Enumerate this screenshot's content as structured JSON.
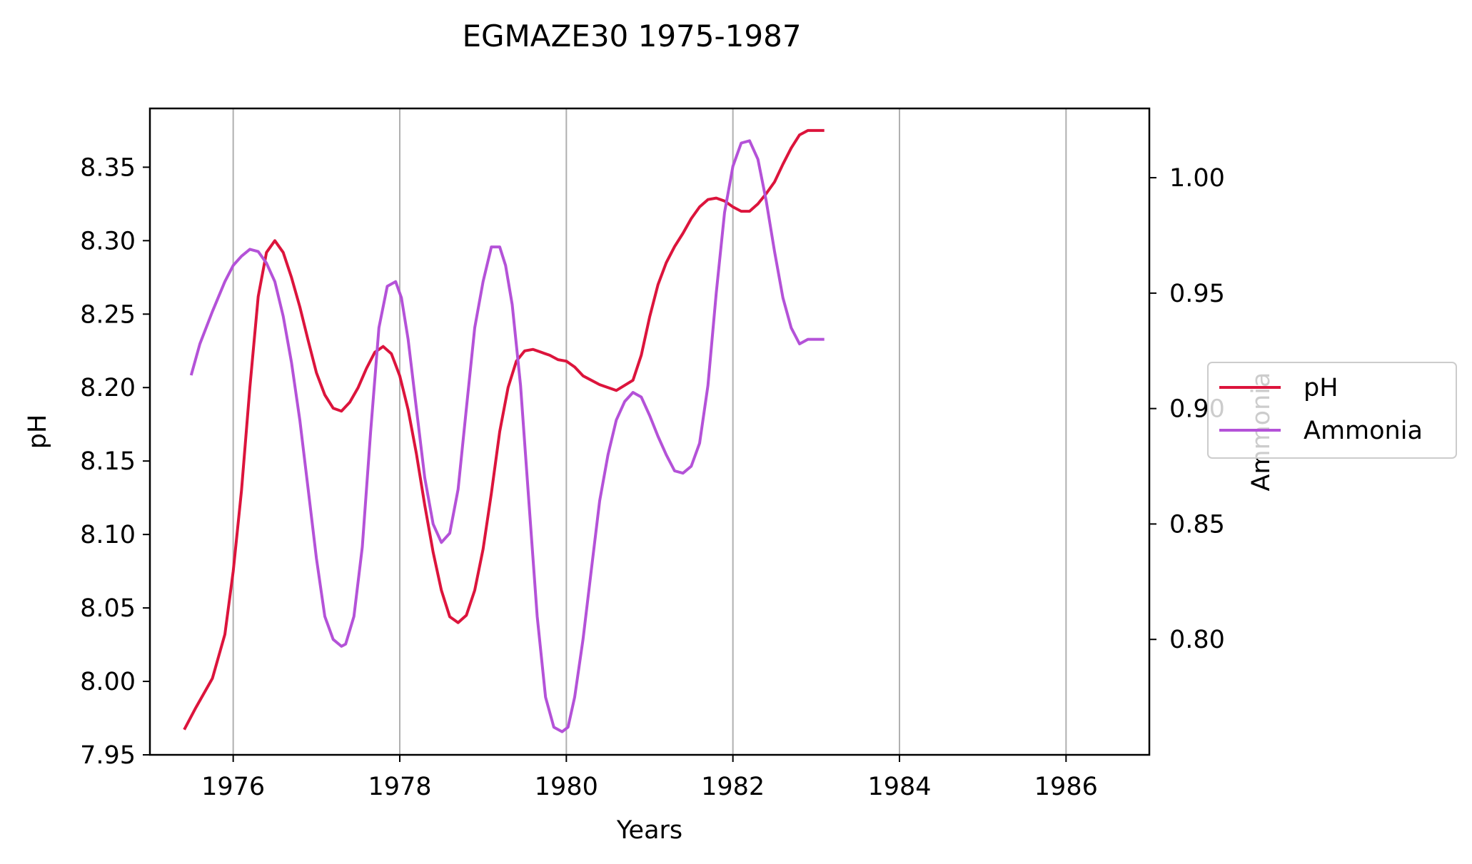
{
  "chart_data": {
    "type": "line",
    "title": "EGMAZE30 1975-1987",
    "xlabel": "Years",
    "ylabel": "pH",
    "y2label": "Ammonia",
    "xlim": [
      1975.0,
      1987.0
    ],
    "ylim": [
      7.95,
      8.39
    ],
    "y2lim": [
      0.75,
      1.03
    ],
    "x_ticks": [
      "1976",
      "1978",
      "1980",
      "1982",
      "1984",
      "1986"
    ],
    "y_ticks": [
      "7.95",
      "8.00",
      "8.05",
      "8.10",
      "8.15",
      "8.20",
      "8.25",
      "8.30",
      "8.35"
    ],
    "y2_ticks": [
      "0.80",
      "0.85",
      "0.90",
      "0.95",
      "1.00"
    ],
    "grid": "x",
    "legend_position": "right",
    "series": [
      {
        "name": "pH",
        "color": "#dc143c",
        "axis": "left",
        "x": [
          1975.42,
          1975.55,
          1975.75,
          1975.9,
          1976.0,
          1976.1,
          1976.2,
          1976.3,
          1976.4,
          1976.5,
          1976.6,
          1976.7,
          1976.8,
          1976.9,
          1977.0,
          1977.1,
          1977.2,
          1977.3,
          1977.4,
          1977.5,
          1977.6,
          1977.7,
          1977.8,
          1977.9,
          1978.0,
          1978.1,
          1978.2,
          1978.3,
          1978.4,
          1978.5,
          1978.6,
          1978.7,
          1978.8,
          1978.9,
          1979.0,
          1979.1,
          1979.2,
          1979.3,
          1979.4,
          1979.5,
          1979.6,
          1979.7,
          1979.8,
          1979.9,
          1980.0,
          1980.1,
          1980.2,
          1980.4,
          1980.6,
          1980.8,
          1980.9,
          1981.0,
          1981.1,
          1981.2,
          1981.3,
          1981.4,
          1981.5,
          1981.6,
          1981.7,
          1981.8,
          1981.9,
          1982.0,
          1982.1,
          1982.2,
          1982.3,
          1982.4,
          1982.5,
          1982.6,
          1982.7,
          1982.8,
          1982.9,
          1983.0,
          1983.08
        ],
        "y": [
          7.968,
          7.982,
          8.002,
          8.032,
          8.075,
          8.13,
          8.2,
          8.262,
          8.292,
          8.3,
          8.292,
          8.275,
          8.255,
          8.232,
          8.21,
          8.195,
          8.186,
          8.184,
          8.19,
          8.2,
          8.213,
          8.224,
          8.228,
          8.223,
          8.208,
          8.185,
          8.155,
          8.12,
          8.088,
          8.062,
          8.044,
          8.04,
          8.045,
          8.062,
          8.09,
          8.128,
          8.17,
          8.2,
          8.218,
          8.225,
          8.226,
          8.224,
          8.222,
          8.219,
          8.218,
          8.214,
          8.208,
          8.202,
          8.198,
          8.205,
          8.222,
          8.248,
          8.27,
          8.285,
          8.296,
          8.305,
          8.315,
          8.323,
          8.328,
          8.329,
          8.327,
          8.323,
          8.32,
          8.32,
          8.325,
          8.332,
          8.34,
          8.352,
          8.363,
          8.372,
          8.375,
          8.375,
          8.375
        ]
      },
      {
        "name": "Ammonia",
        "color": "#b452d8",
        "axis": "right",
        "x": [
          1975.5,
          1975.6,
          1975.75,
          1975.9,
          1976.0,
          1976.1,
          1976.2,
          1976.3,
          1976.4,
          1976.5,
          1976.6,
          1976.7,
          1976.8,
          1976.9,
          1977.0,
          1977.1,
          1977.2,
          1977.3,
          1977.35,
          1977.45,
          1977.55,
          1977.65,
          1977.75,
          1977.85,
          1977.95,
          1978.02,
          1978.1,
          1978.2,
          1978.3,
          1978.4,
          1978.5,
          1978.6,
          1978.7,
          1978.8,
          1978.9,
          1979.0,
          1979.1,
          1979.2,
          1979.27,
          1979.35,
          1979.45,
          1979.55,
          1979.65,
          1979.75,
          1979.85,
          1979.95,
          1980.02,
          1980.1,
          1980.2,
          1980.3,
          1980.4,
          1980.5,
          1980.6,
          1980.7,
          1980.8,
          1980.9,
          1981.0,
          1981.1,
          1981.2,
          1981.3,
          1981.4,
          1981.5,
          1981.6,
          1981.7,
          1981.8,
          1981.9,
          1982.0,
          1982.1,
          1982.2,
          1982.3,
          1982.4,
          1982.5,
          1982.6,
          1982.7,
          1982.8,
          1982.9,
          1983.0,
          1983.08
        ],
        "y": [
          0.915,
          0.928,
          0.942,
          0.955,
          0.962,
          0.966,
          0.969,
          0.968,
          0.963,
          0.955,
          0.94,
          0.92,
          0.895,
          0.865,
          0.835,
          0.81,
          0.8,
          0.797,
          0.798,
          0.81,
          0.84,
          0.89,
          0.935,
          0.953,
          0.955,
          0.948,
          0.93,
          0.9,
          0.87,
          0.85,
          0.842,
          0.846,
          0.865,
          0.9,
          0.935,
          0.955,
          0.97,
          0.97,
          0.962,
          0.945,
          0.91,
          0.86,
          0.81,
          0.775,
          0.762,
          0.76,
          0.762,
          0.775,
          0.8,
          0.83,
          0.86,
          0.88,
          0.895,
          0.903,
          0.907,
          0.905,
          0.897,
          0.888,
          0.88,
          0.873,
          0.872,
          0.875,
          0.885,
          0.91,
          0.95,
          0.985,
          1.005,
          1.015,
          1.016,
          1.008,
          0.99,
          0.968,
          0.948,
          0.935,
          0.928,
          0.93,
          0.93,
          0.93
        ]
      }
    ]
  }
}
